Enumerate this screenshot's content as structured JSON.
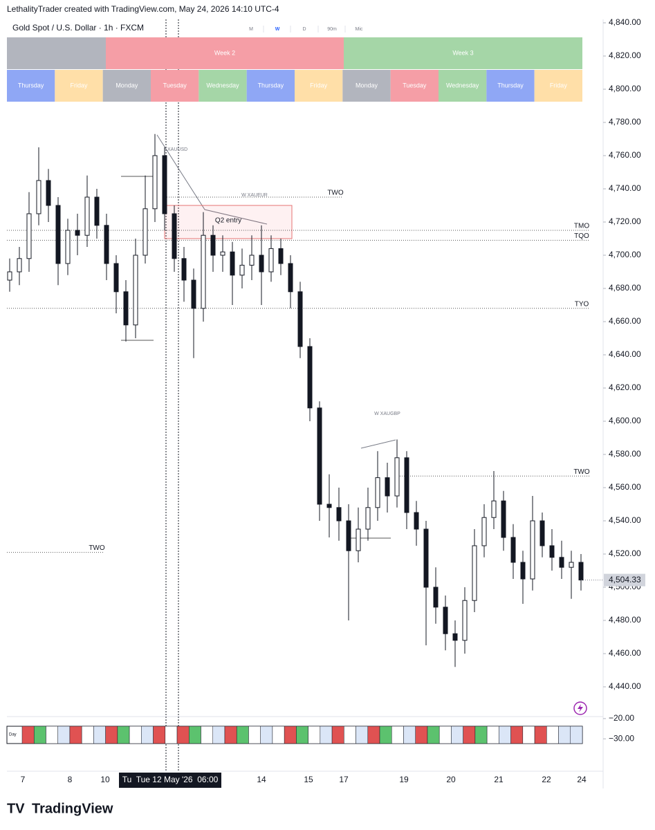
{
  "header": {
    "credit": "LethalityTrader created with TradingView.com, May 24, 2026 14:10 UTC-4",
    "symbol": "Gold Spot / U.S. Dollar · 1h · FXCM"
  },
  "timeframes": [
    "M",
    "W",
    "D",
    "90m",
    "Mic"
  ],
  "weeks": [
    "Week 2",
    "Week 3"
  ],
  "days": [
    "Thursday",
    "Friday",
    "Monday",
    "Tuesday",
    "Wednesday",
    "Thursday",
    "Friday",
    "Monday",
    "Tuesday",
    "Wednesday",
    "Thursday",
    "Friday"
  ],
  "day_colors": [
    "#8fa7f5",
    "#ffdfa8",
    "#b2b5be",
    "#f59ea6",
    "#a5d6a7",
    "#8fa7f5",
    "#ffdfa8",
    "#b2b5be",
    "#f59ea6",
    "#a5d6a7",
    "#8fa7f5",
    "#ffdfa8"
  ],
  "week_colors": [
    "#b2b5be",
    "#f59ea6",
    "#a5d6a7"
  ],
  "chart_data": {
    "type": "candlestick",
    "ylim": [
      4440,
      4840
    ],
    "yticks": [
      {
        "value": 4840,
        "label": "4,840.00"
      },
      {
        "value": 4820,
        "label": "4,820.00"
      },
      {
        "value": 4800,
        "label": "4,800.00"
      },
      {
        "value": 4780,
        "label": "4,780.00"
      },
      {
        "value": 4760,
        "label": "4,760.00"
      },
      {
        "value": 4740,
        "label": "4,740.00"
      },
      {
        "value": 4720,
        "label": "4,720.00"
      },
      {
        "value": 4700,
        "label": "4,700.00"
      },
      {
        "value": 4680,
        "label": "4,680.00"
      },
      {
        "value": 4660,
        "label": "4,660.00"
      },
      {
        "value": 4640,
        "label": "4,640.00"
      },
      {
        "value": 4620,
        "label": "4,620.00"
      },
      {
        "value": 4600,
        "label": "4,600.00"
      },
      {
        "value": 4580,
        "label": "4,580.00"
      },
      {
        "value": 4560,
        "label": "4,560.00"
      },
      {
        "value": 4540,
        "label": "4,540.00"
      },
      {
        "value": 4520,
        "label": "4,520.00"
      },
      {
        "value": 4500,
        "label": "4,500.00"
      },
      {
        "value": 4480,
        "label": "4,480.00"
      },
      {
        "value": 4460,
        "label": "4,460.00"
      },
      {
        "value": 4440,
        "label": "4,440.00"
      }
    ],
    "open": [
      4685,
      4690,
      4698,
      4725,
      4745,
      4730,
      4695,
      4715,
      4712,
      4735,
      4718,
      4695,
      4678,
      4658,
      4700,
      4728,
      4760,
      4725,
      4698,
      4685,
      4668,
      4712,
      4700,
      4702,
      4688,
      4694,
      4700,
      4690,
      4704,
      4695,
      4678,
      4645,
      4608,
      4550,
      4548,
      4540,
      4522,
      4535,
      4548,
      4566,
      4555,
      4578,
      4545,
      4535,
      4500,
      4488,
      4472,
      4468,
      4492,
      4525,
      4542,
      4552,
      4530,
      4515,
      4505,
      4540,
      4525,
      4518,
      4512,
      4515
    ],
    "high": [
      4698,
      4705,
      4738,
      4765,
      4752,
      4735,
      4722,
      4725,
      4748,
      4740,
      4725,
      4700,
      4685,
      4710,
      4748,
      4773,
      4765,
      4730,
      4705,
      4692,
      4726,
      4718,
      4712,
      4708,
      4704,
      4712,
      4718,
      4712,
      4710,
      4700,
      4684,
      4650,
      4612,
      4568,
      4560,
      4550,
      4548,
      4560,
      4582,
      4575,
      4589,
      4582,
      4552,
      4540,
      4512,
      4495,
      4480,
      4500,
      4535,
      4550,
      4570,
      4558,
      4538,
      4522,
      4555,
      4545,
      4535,
      4528,
      4522,
      4520
    ],
    "low": [
      4678,
      4682,
      4690,
      4718,
      4720,
      4682,
      4688,
      4700,
      4705,
      4710,
      4685,
      4665,
      4648,
      4650,
      4695,
      4720,
      4715,
      4690,
      4672,
      4638,
      4660,
      4690,
      4690,
      4670,
      4680,
      4685,
      4670,
      4684,
      4688,
      4668,
      4638,
      4600,
      4540,
      4530,
      4528,
      4480,
      4515,
      4528,
      4540,
      4545,
      4548,
      4535,
      4525,
      4465,
      4478,
      4462,
      4452,
      4460,
      4485,
      4518,
      4535,
      4522,
      4505,
      4490,
      4498,
      4518,
      4510,
      4505,
      4493,
      4498
    ],
    "close": [
      4690,
      4698,
      4725,
      4745,
      4730,
      4695,
      4715,
      4712,
      4735,
      4718,
      4695,
      4678,
      4658,
      4700,
      4728,
      4760,
      4725,
      4698,
      4685,
      4668,
      4712,
      4700,
      4702,
      4688,
      4694,
      4700,
      4690,
      4704,
      4695,
      4678,
      4645,
      4608,
      4550,
      4548,
      4540,
      4522,
      4535,
      4548,
      4566,
      4555,
      4578,
      4545,
      4535,
      4500,
      4488,
      4472,
      4468,
      4492,
      4525,
      4542,
      4552,
      4530,
      4515,
      4505,
      4540,
      4525,
      4518,
      4512,
      4515,
      4504.33
    ],
    "last_price": {
      "value": 4504.33,
      "label": "4,504.33"
    },
    "levels": [
      {
        "label": "TWO",
        "value": 4735
      },
      {
        "label": "TMO",
        "value": 4715
      },
      {
        "label": "TQO",
        "value": 4709
      },
      {
        "label": "TYO",
        "value": 4668
      },
      {
        "label": "TWO",
        "value": 4567
      },
      {
        "label": "TWO",
        "value": 4521
      }
    ],
    "zone": {
      "label": "Q2 entry",
      "high": 4730,
      "low": 4710
    },
    "annotations": [
      "XAUUSD",
      "W XAUEUR",
      "W XAUGBP"
    ],
    "x_labels": [
      "7",
      "8",
      "10",
      "14",
      "15",
      "17",
      "19",
      "20",
      "21",
      "22",
      "24"
    ],
    "crosshair_label": "Tu  Tue 12 May '26  06:00"
  },
  "indicator": {
    "label": "Day",
    "ylim": [
      -45,
      -19
    ],
    "yticks": [
      {
        "value": -20,
        "label": "−20.00"
      },
      {
        "value": -30,
        "label": "−30.00"
      }
    ],
    "cells": [
      "#e05252",
      "#5cc26e",
      "#ffffff",
      "#dbe6f7",
      "#e05252",
      "#ffffff",
      "#dbe6f7",
      "#e05252",
      "#5cc26e",
      "#ffffff",
      "#dbe6f7",
      "#e05252",
      "#ffffff",
      "#e05252",
      "#5cc26e",
      "#ffffff",
      "#dbe6f7",
      "#e05252",
      "#5cc26e",
      "#ffffff",
      "#dbe6f7",
      "#ffffff",
      "#e05252",
      "#5cc26e",
      "#ffffff",
      "#dbe6f7",
      "#e05252",
      "#ffffff",
      "#dbe6f7",
      "#e05252",
      "#5cc26e",
      "#ffffff",
      "#dbe6f7",
      "#e05252",
      "#5cc26e",
      "#ffffff",
      "#dbe6f7",
      "#e05252",
      "#5cc26e",
      "#ffffff",
      "#dbe6f7",
      "#e05252",
      "#ffffff",
      "#e05252",
      "#ffffff",
      "#dbe6f7",
      "#dbe6f7"
    ]
  },
  "brand": "TradingView"
}
